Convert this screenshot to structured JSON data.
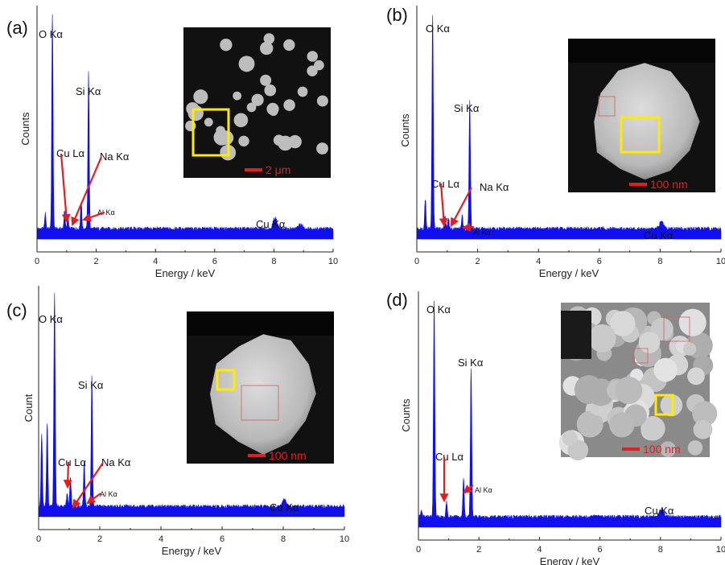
{
  "colors": {
    "spectrum": "#1010ee",
    "arrow": "#e02020",
    "selection_box": "#ffea00",
    "scale_bar": "#e02020",
    "inset_bg": "#111111",
    "particle": "#bdbdbd"
  },
  "chart_data": [
    {
      "type": "area",
      "panel_label": "(a)",
      "xlabel": "Energy / keV",
      "ylabel": "Counts",
      "xlim": [
        0,
        10
      ],
      "x_ticks": [
        "0",
        "2",
        "4",
        "6",
        "8",
        "10"
      ],
      "series": [
        {
          "peaks": [
            {
              "x": 0.28,
              "y": 0.07
            },
            {
              "x": 0.52,
              "y": 1.0
            },
            {
              "x": 0.93,
              "y": 0.08
            },
            {
              "x": 1.04,
              "y": 0.06
            },
            {
              "x": 1.49,
              "y": 0.13
            },
            {
              "x": 1.74,
              "y": 0.72
            },
            {
              "x": 8.04,
              "y": 0.05
            },
            {
              "x": 8.9,
              "y": 0.02
            }
          ]
        }
      ],
      "annotations": [
        {
          "text": "O Kα",
          "peak_x": 0.52
        },
        {
          "text": "Si Kα",
          "peak_x": 1.74
        },
        {
          "text": "Cu Lα",
          "peak_x": 0.93
        },
        {
          "text": "Na Kα",
          "peak_x": 1.04
        },
        {
          "text": "Al Kα",
          "peak_x": 1.49
        },
        {
          "text": "Cu Kα",
          "peak_x": 8.04
        }
      ],
      "inset": {
        "scale_bar": "2 μm",
        "kind": "particles"
      }
    },
    {
      "type": "area",
      "panel_label": "(b)",
      "xlabel": "Energy / keV",
      "ylabel": "Counts",
      "xlim": [
        0,
        10
      ],
      "x_ticks": [
        "0",
        "2",
        "4",
        "6",
        "8",
        "10"
      ],
      "series": [
        {
          "peaks": [
            {
              "x": 0.28,
              "y": 0.14
            },
            {
              "x": 0.52,
              "y": 1.0
            },
            {
              "x": 0.93,
              "y": 0.06
            },
            {
              "x": 1.04,
              "y": 0.05
            },
            {
              "x": 1.49,
              "y": 0.06
            },
            {
              "x": 1.74,
              "y": 0.6
            },
            {
              "x": 8.04,
              "y": 0.03
            }
          ]
        }
      ],
      "annotations": [
        {
          "text": "O Kα",
          "peak_x": 0.52
        },
        {
          "text": "Si Kα",
          "peak_x": 1.74
        },
        {
          "text": "Cu Lα",
          "peak_x": 0.93
        },
        {
          "text": "Na Kα",
          "peak_x": 1.04
        },
        {
          "text": "Al Kα",
          "peak_x": 1.49
        },
        {
          "text": "Cu Kα",
          "peak_x": 8.04
        }
      ],
      "inset": {
        "scale_bar": "100 nm",
        "kind": "single"
      }
    },
    {
      "type": "area",
      "panel_label": "(c)",
      "xlabel": "Energy / keV",
      "ylabel": "Count",
      "xlim": [
        0,
        10
      ],
      "x_ticks": [
        "0",
        "2",
        "4",
        "6",
        "8",
        "10"
      ],
      "series": [
        {
          "peaks": [
            {
              "x": 0.1,
              "y": 0.34
            },
            {
              "x": 0.28,
              "y": 0.39
            },
            {
              "x": 0.52,
              "y": 1.0
            },
            {
              "x": 0.93,
              "y": 0.06
            },
            {
              "x": 1.04,
              "y": 0.14
            },
            {
              "x": 1.49,
              "y": 0.2
            },
            {
              "x": 1.74,
              "y": 0.6
            },
            {
              "x": 8.04,
              "y": 0.03
            }
          ]
        }
      ],
      "annotations": [
        {
          "text": "O Kα",
          "peak_x": 0.52
        },
        {
          "text": "Si Kα",
          "peak_x": 1.74
        },
        {
          "text": "Cu Lα",
          "peak_x": 0.93
        },
        {
          "text": "Na Kα",
          "peak_x": 1.04
        },
        {
          "text": "Al Kα",
          "peak_x": 1.49
        },
        {
          "text": "Cu Kα",
          "peak_x": 8.04
        }
      ],
      "inset": {
        "scale_bar": "100 nm",
        "kind": "single"
      }
    },
    {
      "type": "area",
      "panel_label": "(d)",
      "xlabel": "Energy / keV",
      "ylabel": "Counts",
      "xlim": [
        0,
        10
      ],
      "x_ticks": [
        "0",
        "2",
        "4",
        "6",
        "8",
        "10"
      ],
      "series": [
        {
          "peaks": [
            {
              "x": 0.1,
              "y": 0.03
            },
            {
              "x": 0.52,
              "y": 1.0
            },
            {
              "x": 0.93,
              "y": 0.07
            },
            {
              "x": 1.49,
              "y": 0.18
            },
            {
              "x": 1.74,
              "y": 0.68
            },
            {
              "x": 8.04,
              "y": 0.04
            }
          ]
        }
      ],
      "annotations": [
        {
          "text": "O Kα",
          "peak_x": 0.52
        },
        {
          "text": "Si Kα",
          "peak_x": 1.74
        },
        {
          "text": "Cu Lα",
          "peak_x": 0.93
        },
        {
          "text": "Al Kα",
          "peak_x": 1.49
        },
        {
          "text": "Cu Kα",
          "peak_x": 8.04
        }
      ],
      "inset": {
        "scale_bar": "100 nm",
        "kind": "aggregate"
      }
    }
  ]
}
